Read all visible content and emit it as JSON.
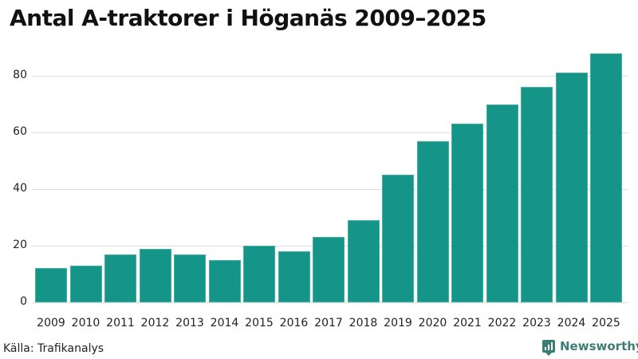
{
  "header": {
    "title": "Antal A-traktorer i Höganäs 2009–2025"
  },
  "footer": {
    "source": "Källa: Trafikanalys",
    "brand": "Newsworthy"
  },
  "colors": {
    "bar": "#149588",
    "grid": "#dcdde3",
    "brand": "#3c7d74"
  },
  "chart_data": {
    "type": "bar",
    "title": "Antal A-traktorer i Höganäs 2009–2025",
    "xlabel": "",
    "ylabel": "",
    "categories": [
      "2009",
      "2010",
      "2011",
      "2012",
      "2013",
      "2014",
      "2015",
      "2016",
      "2017",
      "2018",
      "2019",
      "2020",
      "2021",
      "2022",
      "2023",
      "2024",
      "2025"
    ],
    "values": [
      12,
      13,
      17,
      19,
      17,
      15,
      20,
      18,
      23,
      29,
      45,
      57,
      63,
      70,
      76,
      81,
      88
    ],
    "yticks": [
      0,
      20,
      40,
      60,
      80
    ],
    "ylim": [
      0,
      90
    ],
    "grid": true,
    "legend": null
  }
}
